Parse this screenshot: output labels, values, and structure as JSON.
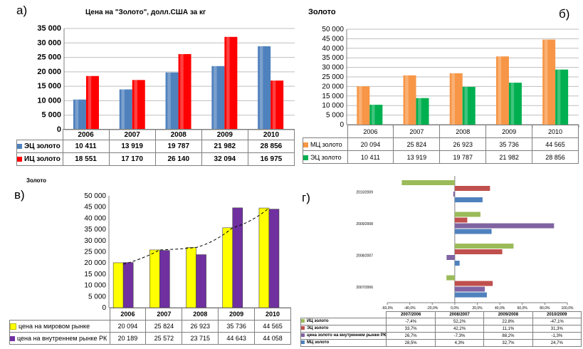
{
  "panels": {
    "a": {
      "letter": "а)"
    },
    "b": {
      "letter": "б)"
    },
    "c": {
      "letter": "в)"
    },
    "d": {
      "letter": "г)"
    }
  },
  "chart_data": [
    {
      "id": "a",
      "type": "bar",
      "title": "Цена на \"Золото\", долл.США за кг",
      "categories": [
        "2006",
        "2007",
        "2008",
        "2009",
        "2010"
      ],
      "series": [
        {
          "name": "ЭЦ золото",
          "color": "#4f81bd",
          "values": [
            10411,
            13919,
            19787,
            21982,
            28856
          ],
          "labels": [
            "10 411",
            "13 919",
            "19 787",
            "21 982",
            "28 856"
          ]
        },
        {
          "name": "ИЦ золото",
          "color": "#ff0000",
          "values": [
            18551,
            17170,
            26140,
            32094,
            16975
          ],
          "labels": [
            "18 551",
            "17 170",
            "26 140",
            "32 094",
            "16 975"
          ]
        }
      ],
      "ylim": [
        0,
        35000
      ],
      "ticks": [
        "0",
        "5 000",
        "10 000",
        "15 000",
        "20 000",
        "25 000",
        "30 000",
        "35 000"
      ],
      "grid": true
    },
    {
      "id": "b",
      "type": "bar",
      "title": "Золото",
      "categories": [
        "2006",
        "2007",
        "2008",
        "2009",
        "2010"
      ],
      "series": [
        {
          "name": "МЦ золото",
          "color": "#f79646",
          "values": [
            20094,
            25824,
            26923,
            35736,
            44565
          ],
          "labels": [
            "20 094",
            "25 824",
            "26 923",
            "35 736",
            "44 565"
          ]
        },
        {
          "name": "ЭЦ золото",
          "color": "#00b050",
          "values": [
            10411,
            13919,
            19787,
            21982,
            28856
          ],
          "labels": [
            "10 411",
            "13 919",
            "19 787",
            "21 982",
            "28 856"
          ]
        }
      ],
      "ylim": [
        0,
        50000
      ],
      "ticks": [
        "0",
        "5 000",
        "10 000",
        "15 000",
        "20 000",
        "25 000",
        "30 000",
        "35 000",
        "40 000",
        "45 000",
        "50 000"
      ],
      "grid": true
    },
    {
      "id": "c",
      "type": "bar",
      "title": "Золото",
      "categories": [
        "2006",
        "2007",
        "2008",
        "2009",
        "2010"
      ],
      "series": [
        {
          "name": "цена на мировом рынке",
          "color": "#ffff00",
          "values": [
            20094,
            25824,
            26923,
            35736,
            44565
          ],
          "labels": [
            "20 094",
            "25 824",
            "26 923",
            "35 736",
            "44 565"
          ]
        },
        {
          "name": "цена на внутреннем рынке РК",
          "color": "#7030a0",
          "values": [
            20189,
            25572,
            23715,
            44643,
            44058
          ],
          "labels": [
            "20 189",
            "25 572",
            "23 715",
            "44 643",
            "44 058"
          ]
        }
      ],
      "ylim": [
        0,
        50000
      ],
      "ticks": [
        "0",
        "5 000",
        "10 000",
        "15 000",
        "20 000",
        "25 000",
        "30 000",
        "35 000",
        "40 000",
        "45 000",
        "50 000"
      ],
      "trendline": true,
      "grid": false
    },
    {
      "id": "d",
      "type": "bar",
      "orientation": "horizontal",
      "categories": [
        "2007/2006",
        "2008/2007",
        "2009/2008",
        "2010/2009"
      ],
      "series": [
        {
          "name": "ИЦ золото",
          "color": "#9bbb59",
          "values": [
            -7.4,
            52.2,
            22.8,
            -47.1
          ],
          "labels": [
            "-7,4%",
            "52,2%",
            "22,8%",
            "-47,1%"
          ]
        },
        {
          "name": "ЭЦ золото",
          "color": "#c0504d",
          "values": [
            33.7,
            42.2,
            11.1,
            31.3
          ],
          "labels": [
            "33,7%",
            "42,2%",
            "11,1%",
            "31,3%"
          ]
        },
        {
          "name": "цена золото на внутреннем рынке РК",
          "color": "#8064a2",
          "values": [
            26.7,
            -7.3,
            88.2,
            -1.3
          ],
          "labels": [
            "26,7%",
            "-7,3%",
            "88,2%",
            "-1,3%"
          ]
        },
        {
          "name": "МЦ золото",
          "color": "#4f81bd",
          "values": [
            28.5,
            4.3,
            32.7,
            24.7
          ],
          "labels": [
            "28,5%",
            "4,3%",
            "32,7%",
            "24,7%"
          ]
        }
      ],
      "xlim": [
        -60,
        100
      ],
      "ticks": [
        "-60,0%",
        "-40,0%",
        "-20,0%",
        "0,0%",
        "20,0%",
        "40,0%",
        "60,0%",
        "80,0%",
        "100,0%"
      ],
      "grid": false
    }
  ]
}
